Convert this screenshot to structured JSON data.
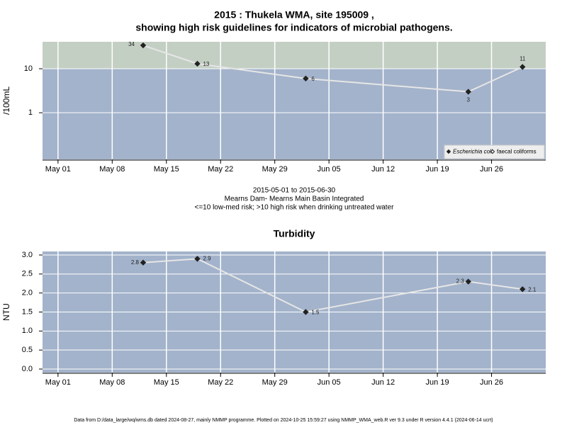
{
  "chart_data": [
    {
      "type": "line",
      "title": [
        "2015 : Thukela WMA, site 195009 ,",
        "showing high risk guidelines for indicators of microbial pathogens."
      ],
      "y_label": "/100mL",
      "log_y": true,
      "grid": true,
      "legend": "bottomright",
      "guideline": 10,
      "low_color": "#a3b3cb",
      "high_color": "#c4cfc4",
      "x": [
        "2015-05-12",
        "2015-05-19",
        "2015-06-02",
        "2015-06-23",
        "2015-06-30"
      ],
      "xlim": [
        "2015-04-29",
        "2015-07-03"
      ],
      "xticks": [
        {
          "value": "2015-05-01",
          "label": "May 01"
        },
        {
          "value": "2015-05-08",
          "label": "May 08"
        },
        {
          "value": "2015-05-15",
          "label": "May 15"
        },
        {
          "value": "2015-05-22",
          "label": "May 22"
        },
        {
          "value": "2015-05-29",
          "label": "May 29"
        },
        {
          "value": "2015-06-05",
          "label": "Jun 05"
        },
        {
          "value": "2015-06-12",
          "label": "Jun 12"
        },
        {
          "value": "2015-06-19",
          "label": "Jun 19"
        },
        {
          "value": "2015-06-26",
          "label": "Jun 26"
        }
      ],
      "ylim": [
        0.087,
        41
      ],
      "yticks": [
        1,
        10
      ],
      "series": [
        {
          "name": "Escherichia coli",
          "color": "#e6e6e6",
          "marker": "filled",
          "values": [
            34,
            13,
            6,
            3,
            11
          ]
        },
        {
          "name": "faecal coliforms",
          "color": "#e6e6e6",
          "marker": "open",
          "values": [
            null,
            null,
            null,
            null,
            null
          ]
        }
      ],
      "notes": [
        "2015-05-01 to 2015-06-30",
        "Mearns Dam- Mearns Main Basin Integrated",
        "<=10 low-med risk; >10 high risk when drinking untreated water"
      ]
    },
    {
      "type": "line",
      "title": [
        "Turbidity"
      ],
      "y_label": "NTU",
      "log_y": false,
      "grid": true,
      "low_color": "#a3b3cb",
      "x": [
        "2015-05-12",
        "2015-05-19",
        "2015-06-02",
        "2015-06-23",
        "2015-06-30"
      ],
      "xlim": [
        "2015-04-29",
        "2015-07-03"
      ],
      "xticks": [
        {
          "value": "2015-05-01",
          "label": "May 01"
        },
        {
          "value": "2015-05-08",
          "label": "May 08"
        },
        {
          "value": "2015-05-15",
          "label": "May 15"
        },
        {
          "value": "2015-05-22",
          "label": "May 22"
        },
        {
          "value": "2015-05-29",
          "label": "May 29"
        },
        {
          "value": "2015-06-05",
          "label": "Jun 05"
        },
        {
          "value": "2015-06-12",
          "label": "Jun 12"
        },
        {
          "value": "2015-06-19",
          "label": "Jun 19"
        },
        {
          "value": "2015-06-26",
          "label": "Jun 26"
        }
      ],
      "ylim": [
        -0.093,
        3.093
      ],
      "yticks": [
        {
          "value": 0,
          "label": "0.0"
        },
        {
          "value": 0.5,
          "label": "0.5"
        },
        {
          "value": 1,
          "label": "1.0"
        },
        {
          "value": 1.5,
          "label": "1.5"
        },
        {
          "value": 2,
          "label": "2.0"
        },
        {
          "value": 2.5,
          "label": "2.5"
        },
        {
          "value": 3,
          "label": "3.0"
        }
      ],
      "series": [
        {
          "name": "Turbidity",
          "color": "#e6e6e6",
          "marker": "filled",
          "values": [
            2.8,
            2.9,
            1.5,
            2.3,
            2.1
          ]
        }
      ]
    }
  ],
  "footer": "Data from D:/data_large/wq/wms.db dated 2024-08-27, mainly NMMP programme. Plotted on 2024-10-25 15:59:27 using NMMP_WMA_web.R ver 9.3 under R version 4.4.1 (2024-06-14 ucrt)"
}
